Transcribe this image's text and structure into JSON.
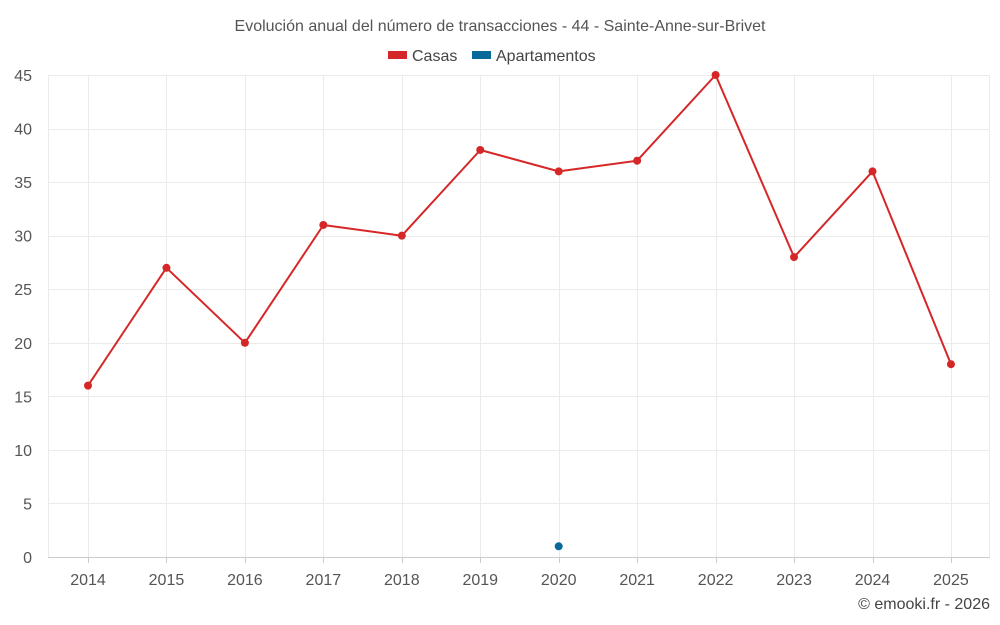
{
  "chart_data": {
    "type": "line",
    "title": "Evolución anual del número de transacciones - 44 - Sainte-Anne-sur-Brivet",
    "categories": [
      "2014",
      "2015",
      "2016",
      "2017",
      "2018",
      "2019",
      "2020",
      "2021",
      "2022",
      "2023",
      "2024",
      "2025"
    ],
    "series": [
      {
        "name": "Casas",
        "color": "#d62728",
        "values": [
          16,
          27,
          20,
          31,
          30,
          38,
          36,
          37,
          45,
          28,
          36,
          18
        ]
      },
      {
        "name": "Apartamentos",
        "color": "#08699b",
        "values": [
          null,
          null,
          null,
          null,
          null,
          null,
          1,
          null,
          null,
          null,
          null,
          null
        ]
      }
    ],
    "ylim": [
      0,
      45
    ],
    "yticks": [
      0,
      5,
      10,
      15,
      20,
      25,
      30,
      35,
      40,
      45
    ],
    "xlabel": "",
    "ylabel": "",
    "grid": true,
    "legend_position": "top-center"
  },
  "credit": "© emooki.fr - 2026"
}
